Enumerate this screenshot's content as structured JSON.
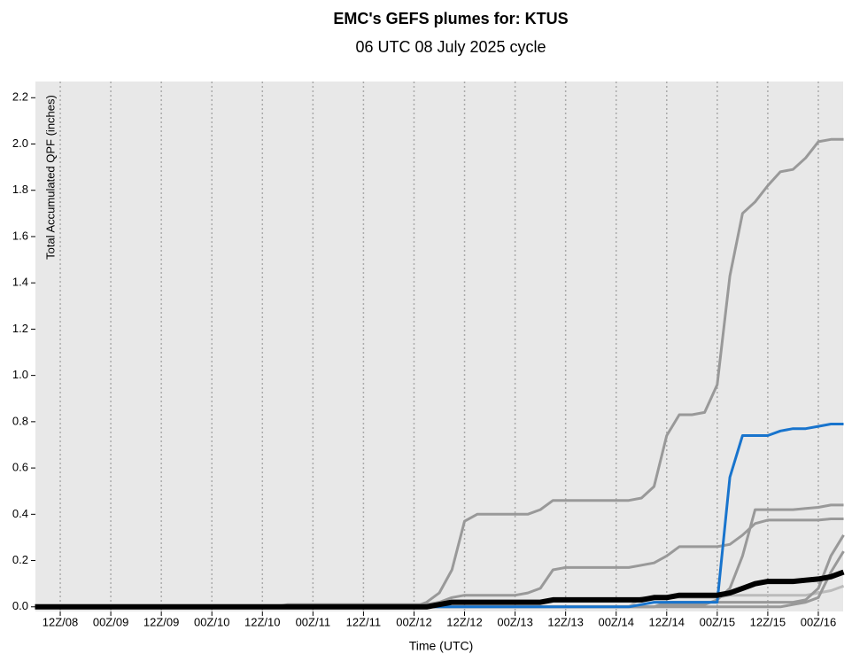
{
  "chart_data": {
    "type": "line",
    "title": "EMC's GEFS plumes for: KTUS",
    "subtitle": "06 UTC 08 July 2025 cycle",
    "x_label": "Time (UTC)",
    "y_label": "Total Accumulated QPF (inches)",
    "categories": [
      null,
      null,
      "12Z/08",
      null,
      null,
      null,
      "00Z/09",
      null,
      null,
      null,
      "12Z/09",
      null,
      null,
      null,
      "00Z/10",
      null,
      null,
      null,
      "12Z/10",
      null,
      null,
      null,
      "00Z/11",
      null,
      null,
      null,
      "12Z/11",
      null,
      null,
      null,
      "00Z/12",
      null,
      null,
      null,
      "12Z/12",
      null,
      null,
      null,
      "00Z/13",
      null,
      null,
      null,
      "12Z/13",
      null,
      null,
      null,
      "00Z/14",
      null,
      null,
      null,
      "12Z/14",
      null,
      null,
      null,
      "00Z/15",
      null,
      null,
      null,
      "12Z/15",
      null,
      null,
      null,
      "00Z/16",
      null,
      null
    ],
    "ylim": [
      -0.02,
      2.27
    ],
    "yticks": [
      {
        "value": 0,
        "label": "0.0"
      },
      0.2,
      0.4,
      0.6,
      0.8,
      {
        "value": 1,
        "label": "1.0"
      },
      1.2,
      1.4,
      1.6,
      1.8,
      {
        "value": 2,
        "label": "2.0"
      },
      2.2
    ],
    "grid": true,
    "series": [
      {
        "color": "#bbbbbb",
        "line_width": 3,
        "values": [
          0,
          0,
          0,
          0,
          0,
          0,
          0,
          0,
          0,
          0,
          0,
          0,
          0,
          0,
          0,
          0,
          0,
          0,
          0,
          0,
          0,
          0,
          0,
          0,
          0,
          0,
          0,
          0,
          0,
          0,
          0,
          0,
          0,
          0,
          0,
          0,
          0,
          0,
          0,
          0,
          0,
          0,
          0,
          0,
          0,
          0,
          0,
          0,
          0.04,
          0.04,
          0.04,
          0.04,
          0.04,
          0.04,
          0.04,
          0.05,
          0.05,
          0.05,
          0.05,
          0.05,
          0.05,
          0.05,
          0.06,
          0.07,
          0.09
        ]
      },
      {
        "color": "#999999",
        "line_width": 3,
        "values": [
          0,
          0,
          0,
          0,
          0,
          0,
          0,
          0,
          0,
          0,
          0,
          0,
          0,
          0,
          0,
          0,
          0,
          0,
          0,
          0,
          0,
          0,
          0,
          0,
          0,
          0,
          0,
          0,
          0,
          0,
          0,
          0,
          0,
          0,
          0,
          0,
          0,
          0,
          0,
          0,
          0,
          0,
          0,
          0,
          0,
          0,
          0,
          0,
          0,
          0,
          0,
          0,
          0,
          0,
          0,
          0,
          0,
          0,
          0,
          0,
          0.01,
          0.02,
          0.04,
          0.15,
          0.24
        ]
      },
      {
        "color": "#999999",
        "line_width": 3,
        "values": [
          0,
          0,
          0,
          0,
          0,
          0,
          0,
          0,
          0,
          0,
          0,
          0,
          0,
          0,
          0,
          0,
          0,
          0,
          0,
          0,
          0,
          0,
          0,
          0,
          0,
          0,
          0,
          0,
          0,
          0,
          0,
          0,
          0,
          0,
          0,
          0,
          0,
          0,
          0,
          0,
          0,
          0,
          0,
          0,
          0,
          0,
          0,
          0,
          0,
          0,
          0.02,
          0.02,
          0.02,
          0.02,
          0.02,
          0.02,
          0.02,
          0.02,
          0.02,
          0.02,
          0.02,
          0.03,
          0.08,
          0.22,
          0.31
        ]
      },
      {
        "color": "#999999",
        "line_width": 3,
        "values": [
          0,
          0,
          0,
          0,
          0,
          0,
          0,
          0,
          0,
          0,
          0,
          0,
          0,
          0,
          0,
          0,
          0,
          0,
          0,
          0,
          0,
          0,
          0,
          0,
          0,
          0,
          0,
          0,
          0,
          0,
          0,
          0,
          0,
          0,
          0,
          0,
          0,
          0,
          0,
          0,
          0,
          0,
          0,
          0,
          0,
          0,
          0,
          0,
          0,
          0,
          0.01,
          0.01,
          0.01,
          0.01,
          0.03,
          0.08,
          0.22,
          0.42,
          0.42,
          0.42,
          0.42,
          0.425,
          0.43,
          0.44,
          0.44
        ]
      },
      {
        "color": "#999999",
        "line_width": 3,
        "values": [
          0,
          0,
          0,
          0,
          0,
          0,
          0,
          0,
          0,
          0,
          0,
          0,
          0,
          0,
          0,
          0,
          0,
          0,
          0,
          0,
          0.01,
          0.01,
          0.01,
          0.01,
          0.01,
          0.01,
          0.01,
          0.01,
          0.01,
          0.01,
          0.01,
          0.01,
          0.02,
          0.04,
          0.05,
          0.05,
          0.05,
          0.05,
          0.05,
          0.06,
          0.08,
          0.16,
          0.17,
          0.17,
          0.17,
          0.17,
          0.17,
          0.17,
          0.18,
          0.19,
          0.22,
          0.26,
          0.26,
          0.26,
          0.26,
          0.27,
          0.31,
          0.36,
          0.375,
          0.375,
          0.375,
          0.375,
          0.375,
          0.38,
          0.38
        ]
      },
      {
        "color": "#999999",
        "line_width": 3,
        "values": [
          0,
          0,
          0,
          0,
          0,
          0,
          0,
          0,
          0,
          0,
          0,
          0,
          0,
          0,
          0,
          0,
          0,
          0,
          0,
          0,
          0,
          0,
          0,
          0,
          0,
          0,
          0,
          0,
          0,
          0,
          0,
          0.02,
          0.06,
          0.16,
          0.37,
          0.4,
          0.4,
          0.4,
          0.4,
          0.4,
          0.42,
          0.46,
          0.46,
          0.46,
          0.46,
          0.46,
          0.46,
          0.46,
          0.47,
          0.52,
          0.74,
          0.83,
          0.83,
          0.84,
          0.96,
          1.43,
          1.7,
          1.75,
          1.82,
          1.88,
          1.89,
          1.94,
          2.01,
          2.02,
          2.02
        ]
      },
      {
        "color": "#1874cd",
        "line_width": 3,
        "values": [
          0,
          0,
          0,
          0,
          0,
          0,
          0,
          0,
          0,
          0,
          0,
          0,
          0,
          0,
          0,
          0,
          0,
          0,
          0,
          0,
          0,
          0,
          0,
          0,
          0,
          0,
          0,
          0,
          0,
          0,
          0,
          0,
          0,
          0,
          0,
          0,
          0,
          0,
          0,
          0,
          0,
          0,
          0,
          0,
          0,
          0,
          0,
          0,
          0.01,
          0.02,
          0.02,
          0.02,
          0.02,
          0.02,
          0.02,
          0.56,
          0.74,
          0.74,
          0.74,
          0.76,
          0.77,
          0.77,
          0.78,
          0.79,
          0.79
        ]
      },
      {
        "color": "#000000",
        "line_width": 6,
        "values": [
          0,
          0,
          0,
          0,
          0,
          0,
          0,
          0,
          0,
          0,
          0,
          0,
          0,
          0,
          0,
          0,
          0,
          0,
          0,
          0,
          0,
          0,
          0,
          0,
          0,
          0,
          0,
          0,
          0,
          0,
          0,
          0,
          0.01,
          0.02,
          0.02,
          0.02,
          0.02,
          0.02,
          0.02,
          0.02,
          0.02,
          0.03,
          0.03,
          0.03,
          0.03,
          0.03,
          0.03,
          0.03,
          0.03,
          0.04,
          0.04,
          0.05,
          0.05,
          0.05,
          0.05,
          0.06,
          0.08,
          0.1,
          0.11,
          0.11,
          0.11,
          0.115,
          0.12,
          0.13,
          0.15
        ]
      }
    ]
  }
}
